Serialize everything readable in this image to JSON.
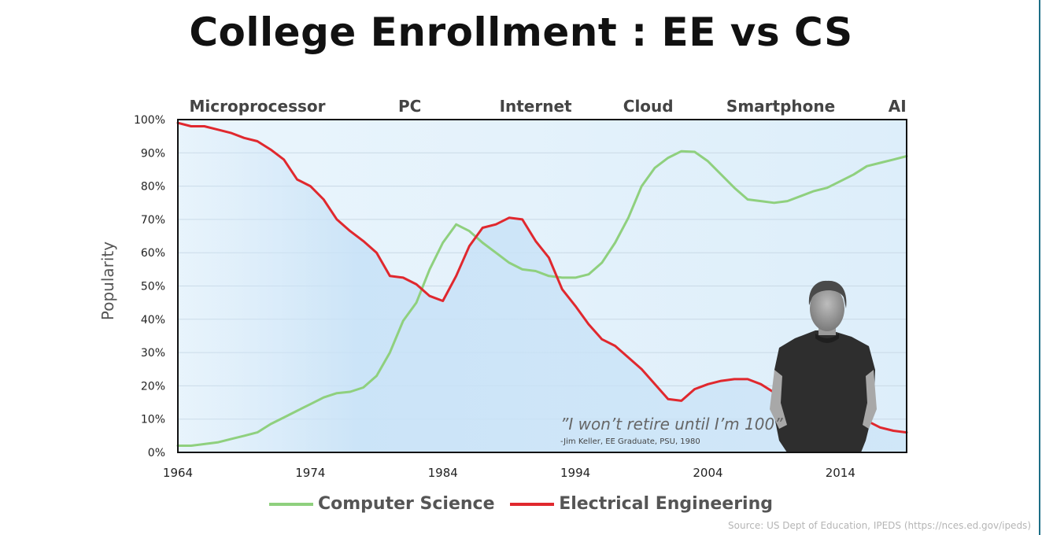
{
  "chart_data": {
    "type": "line",
    "title": "College Enrollment : EE vs CS",
    "ylabel": "Popularity",
    "xlabel": "",
    "xlim": [
      1964,
      2019
    ],
    "ylim": [
      0,
      100
    ],
    "x_ticks": [
      1964,
      1974,
      1984,
      1994,
      2004,
      2014
    ],
    "y_ticks": [
      "0%",
      "10%",
      "20%",
      "30%",
      "40%",
      "50%",
      "60%",
      "70%",
      "80%",
      "90%",
      "100%"
    ],
    "grid": true,
    "legend_position": "bottom",
    "eras": [
      {
        "label": "Microprocessor",
        "x": 1970
      },
      {
        "label": "PC",
        "x": 1981.5
      },
      {
        "label": "Internet",
        "x": 1991
      },
      {
        "label": "Cloud",
        "x": 1999.5
      },
      {
        "label": "Smartphone",
        "x": 2009.5
      },
      {
        "label": "AI",
        "x": 2018.3
      }
    ],
    "series": [
      {
        "name": "Computer Science",
        "color": "#8fd07e",
        "x": [
          1964,
          1965,
          1966,
          1967,
          1968,
          1969,
          1970,
          1971,
          1972,
          1973,
          1974,
          1975,
          1976,
          1977,
          1978,
          1979,
          1980,
          1981,
          1982,
          1983,
          1984,
          1985,
          1986,
          1987,
          1988,
          1989,
          1990,
          1991,
          1992,
          1993,
          1994,
          1995,
          1996,
          1997,
          1998,
          1999,
          2000,
          2001,
          2002,
          2003,
          2004,
          2005,
          2006,
          2007,
          2008,
          2009,
          2010,
          2011,
          2012,
          2013,
          2014,
          2015,
          2016,
          2017,
          2018,
          2019
        ],
        "values": [
          2,
          2,
          2.5,
          3,
          4,
          5,
          6,
          8.5,
          10.5,
          12.5,
          14.5,
          16.5,
          17.8,
          18.2,
          19.5,
          23,
          30,
          39.5,
          45,
          55,
          63,
          68.5,
          66.5,
          63,
          60,
          57,
          55,
          54.5,
          53,
          52.5,
          52.5,
          53.5,
          57,
          63,
          70.5,
          80,
          85.5,
          88.5,
          90.5,
          90.3,
          87.5,
          83.5,
          79.5,
          76,
          75.5,
          75,
          75.5,
          77,
          78.5,
          79.5,
          81.5,
          83.5,
          86,
          87,
          88,
          89
        ]
      },
      {
        "name": "Electrical Engineering",
        "color": "#e0282e",
        "x": [
          1964,
          1965,
          1966,
          1967,
          1968,
          1969,
          1970,
          1971,
          1972,
          1973,
          1974,
          1975,
          1976,
          1977,
          1978,
          1979,
          1980,
          1981,
          1982,
          1983,
          1984,
          1985,
          1986,
          1987,
          1988,
          1989,
          1990,
          1991,
          1992,
          1993,
          1994,
          1995,
          1996,
          1997,
          1998,
          1999,
          2000,
          2001,
          2002,
          2003,
          2004,
          2005,
          2006,
          2007,
          2008,
          2009,
          2010,
          2011,
          2012,
          2013,
          2014,
          2015,
          2016,
          2017,
          2018,
          2019
        ],
        "values": [
          99,
          98,
          98,
          97,
          96,
          94.5,
          93.5,
          91,
          88,
          82,
          80,
          76,
          70,
          66.5,
          63.5,
          60,
          53,
          52.5,
          50.5,
          47,
          45.5,
          53,
          62,
          67.5,
          68.5,
          70.5,
          70,
          63.5,
          58.5,
          49,
          44,
          38.5,
          34,
          32,
          28.5,
          25,
          20.5,
          16,
          15.5,
          19,
          20.5,
          21.5,
          22,
          22,
          20.5,
          18,
          16,
          15,
          14.5,
          13.5,
          12,
          11,
          9.5,
          7.5,
          6.5,
          6
        ]
      }
    ]
  },
  "annotation": {
    "quote": "”I won’t retire until I’m 100”",
    "attribution": "-Jim Keller, EE Graduate, PSU, 1980"
  },
  "source": "Source: US Dept of Education, IPEDS (https://nces.ed.gov/ipeds)"
}
